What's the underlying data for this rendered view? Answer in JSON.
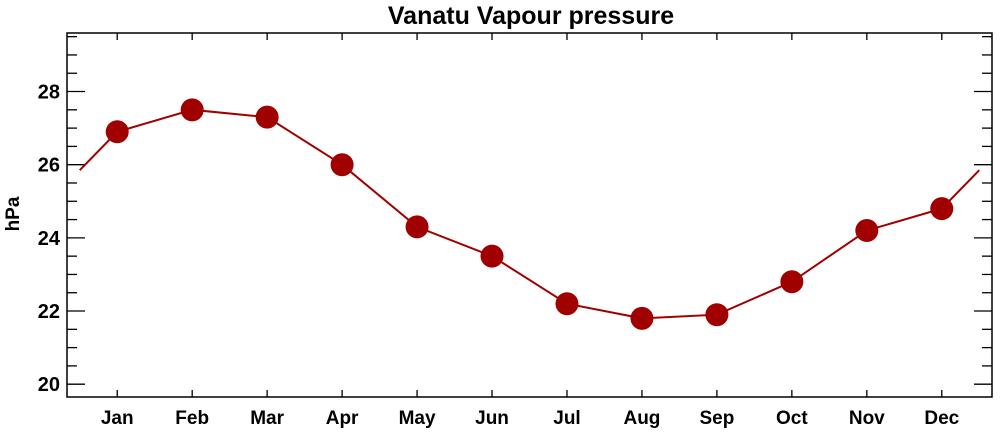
{
  "chart_data": {
    "type": "line",
    "title": "Vanatu Vapour pressure",
    "xlabel": "",
    "ylabel": "hPa",
    "categories": [
      "Jan",
      "Feb",
      "Mar",
      "Apr",
      "May",
      "Jun",
      "Jul",
      "Aug",
      "Sep",
      "Oct",
      "Nov",
      "Dec"
    ],
    "series": [
      {
        "name": "Vapour pressure",
        "color": "#a00000",
        "values": [
          26.9,
          27.5,
          27.3,
          26.0,
          24.3,
          23.5,
          22.2,
          21.8,
          21.9,
          22.8,
          24.2,
          24.8
        ]
      }
    ],
    "ylim": [
      19.65,
      29.6
    ],
    "xlim": [
      0.33,
      12.67
    ],
    "yticks": [
      "20",
      "22",
      "24",
      "26",
      "28"
    ],
    "ytick_values": [
      20,
      22,
      24,
      26,
      28
    ],
    "yminor_step": 0.5,
    "grid": false,
    "legend": "none"
  }
}
